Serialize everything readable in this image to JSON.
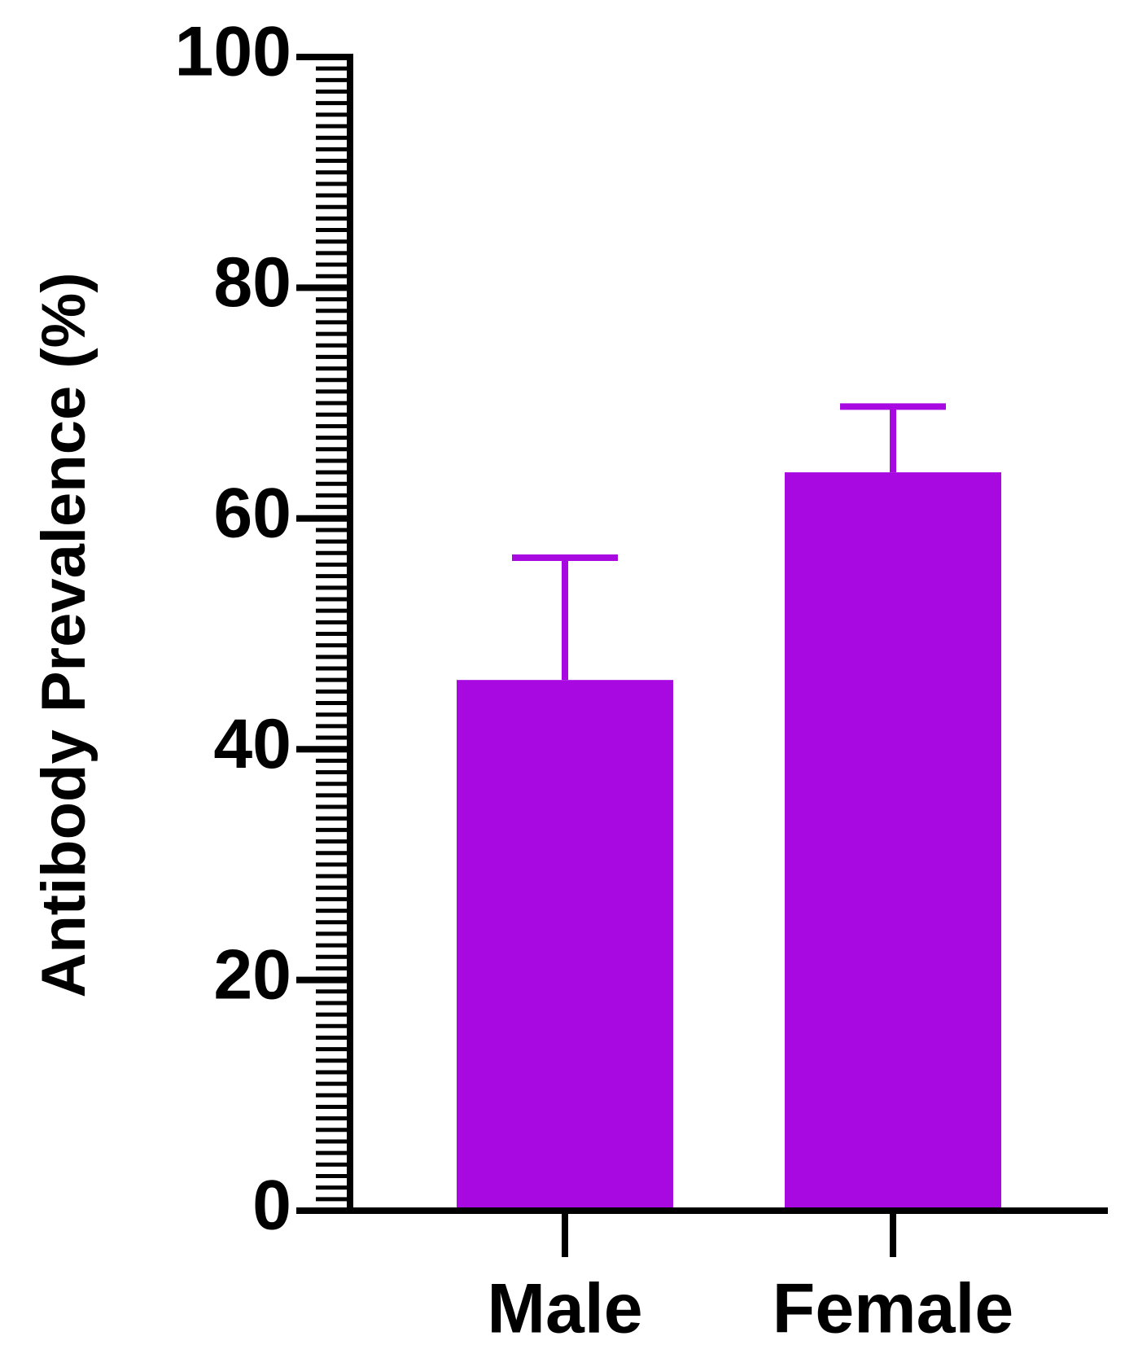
{
  "chart_data": {
    "type": "bar",
    "ylabel": "Antibody Prevalence (%)",
    "categories": [
      "Male",
      "Female"
    ],
    "values": [
      46,
      64
    ],
    "errors": [
      10.6,
      5.7
    ],
    "color": "#a709e0",
    "ylim": [
      0,
      100
    ],
    "yticks": [
      0,
      20,
      40,
      60,
      80,
      100
    ],
    "yminor_step": 1
  }
}
